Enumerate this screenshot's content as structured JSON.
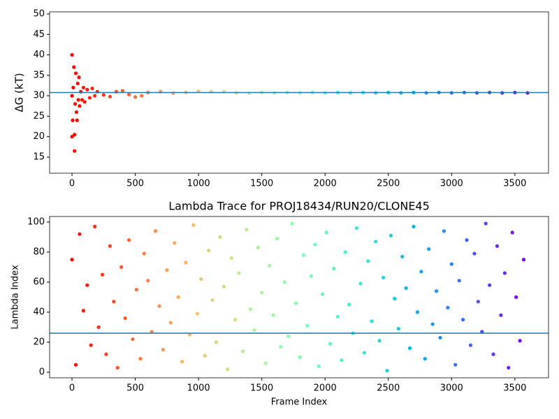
{
  "chart_data": [
    {
      "type": "scatter",
      "ylabel": "ΔG (kT)",
      "colormap": "rainbow_r",
      "x": [
        0,
        0,
        0,
        5,
        10,
        15,
        20,
        20,
        25,
        30,
        35,
        40,
        45,
        50,
        55,
        60,
        70,
        80,
        90,
        100,
        120,
        140,
        160,
        180,
        200,
        250,
        300,
        350,
        400,
        450,
        500,
        550,
        600,
        700,
        800,
        900,
        1000,
        1100,
        1200,
        1300,
        1400,
        1500,
        1600,
        1700,
        1800,
        1900,
        2000,
        2100,
        2200,
        2300,
        2400,
        2500,
        2600,
        2700,
        2800,
        2900,
        3000,
        3100,
        3200,
        3300,
        3400,
        3500,
        3600
      ],
      "values": [
        40,
        30,
        20,
        24,
        32,
        37,
        16.5,
        20.5,
        28,
        35.5,
        26,
        24,
        33,
        29,
        34.5,
        27.5,
        31,
        29,
        32,
        28.5,
        31.5,
        29.5,
        31.8,
        30,
        31,
        30.2,
        29.8,
        31,
        31.2,
        30.3,
        29.7,
        30,
        30.8,
        31,
        30.6,
        30.8,
        31.1,
        31,
        31,
        30.7,
        30.6,
        30.8,
        30.7,
        30.8,
        30.7,
        30.8,
        30.7,
        30.8,
        30.7,
        30.8,
        30.7,
        30.8,
        30.7,
        30.8,
        30.7,
        30.8,
        30.7,
        30.8,
        30.7,
        30.8,
        30.7,
        30.8,
        30.7
      ],
      "hline": {
        "value": 30.8,
        "color": "#1f77b4"
      },
      "xlim": [
        -177,
        3766
      ],
      "ylim": [
        11.07,
        50.51
      ],
      "xticks": [
        0,
        500,
        1000,
        1500,
        2000,
        2500,
        3000,
        3500
      ],
      "yticks": [
        15,
        20,
        25,
        30,
        35,
        40,
        45,
        50
      ]
    },
    {
      "type": "scatter",
      "title": "Lambda Trace for PROJ18434/RUN20/CLONE45",
      "xlabel": "Frame Index",
      "ylabel": "Lambda Index",
      "colormap": "rainbow_r",
      "x": [
        0,
        30,
        60,
        90,
        120,
        150,
        180,
        210,
        240,
        270,
        300,
        330,
        360,
        390,
        420,
        450,
        480,
        510,
        540,
        570,
        600,
        630,
        660,
        690,
        720,
        750,
        780,
        810,
        840,
        870,
        900,
        930,
        960,
        990,
        1020,
        1050,
        1080,
        1110,
        1140,
        1170,
        1200,
        1230,
        1260,
        1290,
        1320,
        1350,
        1380,
        1410,
        1440,
        1470,
        1500,
        1530,
        1560,
        1590,
        1620,
        1650,
        1680,
        1710,
        1740,
        1770,
        1800,
        1830,
        1860,
        1890,
        1920,
        1950,
        1980,
        2010,
        2040,
        2070,
        2100,
        2130,
        2160,
        2190,
        2220,
        2250,
        2280,
        2310,
        2340,
        2370,
        2400,
        2430,
        2460,
        2490,
        2520,
        2550,
        2580,
        2610,
        2640,
        2670,
        2700,
        2730,
        2760,
        2790,
        2820,
        2850,
        2880,
        2910,
        2940,
        2970,
        3000,
        3030,
        3060,
        3090,
        3120,
        3150,
        3180,
        3210,
        3240,
        3270,
        3300,
        3330,
        3360,
        3390,
        3420,
        3450,
        3480,
        3510,
        3540,
        3570
      ],
      "values": [
        75,
        5,
        92,
        41,
        58,
        18,
        97,
        30,
        65,
        12,
        84,
        47,
        3,
        70,
        36,
        88,
        22,
        55,
        9,
        79,
        61,
        27,
        94,
        44,
        15,
        68,
        33,
        86,
        50,
        7,
        73,
        25,
        98,
        39,
        62,
        11,
        81,
        48,
        20,
        90,
        57,
        2,
        76,
        35,
        66,
        14,
        95,
        42,
        28,
        83,
        53,
        6,
        71,
        38,
        89,
        17,
        60,
        24,
        99,
        46,
        10,
        78,
        31,
        64,
        85,
        4,
        52,
        93,
        19,
        69,
        37,
        8,
        80,
        45,
        26,
        96,
        59,
        13,
        74,
        34,
        87,
        21,
        63,
        1,
        91,
        49,
        29,
        77,
        56,
        16,
        97,
        40,
        67,
        9,
        82,
        32,
        54,
        23,
        94,
        43,
        72,
        5,
        61,
        35,
        88,
        18,
        79,
        47,
        27,
        99,
        58,
        12,
        84,
        38,
        66,
        3,
        93,
        50,
        21,
        75
      ],
      "hline": {
        "value": 26,
        "color": "#1f77b4"
      },
      "xlim": [
        -177,
        3766
      ],
      "ylim": [
        -3.7,
        103.7
      ],
      "xticks": [
        0,
        500,
        1000,
        1500,
        2000,
        2500,
        3000,
        3500
      ],
      "yticks": [
        0,
        20,
        40,
        60,
        80,
        100
      ]
    }
  ]
}
